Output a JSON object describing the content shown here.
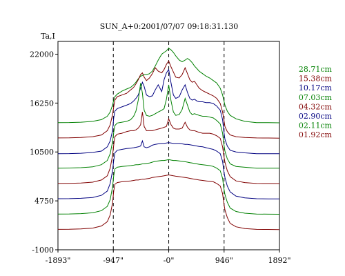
{
  "chart_data": {
    "type": "line",
    "title": "SUN_A+0:2001/07/07 09:18:31.130",
    "ylabel": "Ta,I",
    "xlabel": "",
    "grid": false,
    "legend_position": "right",
    "xlim": [
      -1893,
      1892
    ],
    "ylim": [
      -1000,
      23500
    ],
    "x_ticks": [
      {
        "value": -1893,
        "label": "-1893\""
      },
      {
        "value": -947,
        "label": "-947\""
      },
      {
        "value": 0,
        "label": "-0\""
      },
      {
        "value": 946,
        "label": "946\""
      },
      {
        "value": 1892,
        "label": "1892\""
      }
    ],
    "y_ticks": [
      {
        "value": 22000,
        "label": "22000"
      },
      {
        "value": 16250,
        "label": "16250"
      },
      {
        "value": 10500,
        "label": "10500"
      },
      {
        "value": 4750,
        "label": "4750"
      },
      {
        "value": -1000,
        "label": "-1000"
      }
    ],
    "vlines": [
      -947,
      0,
      946
    ],
    "x": [
      -1893,
      -1700,
      -1500,
      -1300,
      -1150,
      -1050,
      -1000,
      -960,
      -940,
      -920,
      -880,
      -800,
      -720,
      -650,
      -600,
      -560,
      -520,
      -480,
      -450,
      -420,
      -380,
      -330,
      -280,
      -230,
      -180,
      -120,
      -80,
      -40,
      0,
      40,
      80,
      120,
      180,
      230,
      280,
      320,
      360,
      400,
      440,
      480,
      520,
      580,
      640,
      700,
      760,
      820,
      880,
      920,
      940,
      960,
      1000,
      1050,
      1150,
      1300,
      1500,
      1700,
      1892
    ],
    "series": [
      {
        "name": "28.71cm",
        "color": "#008000",
        "values": [
          13950,
          13960,
          14000,
          14100,
          14300,
          14700,
          15200,
          16000,
          16600,
          17000,
          17300,
          17650,
          17900,
          18100,
          18400,
          18700,
          19100,
          19400,
          19500,
          19600,
          19600,
          19700,
          20000,
          20600,
          21300,
          22000,
          22200,
          22400,
          22700,
          22500,
          22200,
          21800,
          21300,
          21100,
          21300,
          21500,
          21300,
          21000,
          20600,
          20300,
          20000,
          19700,
          19400,
          19200,
          18900,
          18600,
          18000,
          17200,
          16600,
          16000,
          15300,
          14800,
          14400,
          14100,
          13950,
          13940,
          13930
        ]
      },
      {
        "name": "15.38cm",
        "color": "#800000",
        "values": [
          12150,
          12160,
          12200,
          12300,
          12500,
          13000,
          13700,
          14900,
          15800,
          16600,
          17000,
          17200,
          17400,
          17800,
          18100,
          18500,
          19000,
          19600,
          19800,
          19300,
          18900,
          19200,
          19700,
          20400,
          20000,
          19800,
          20200,
          20800,
          21200,
          20500,
          19900,
          19300,
          19200,
          19600,
          20400,
          19700,
          19000,
          18700,
          18800,
          18400,
          18000,
          17700,
          17500,
          17300,
          17100,
          16800,
          16200,
          15200,
          14400,
          13500,
          12900,
          12500,
          12300,
          12200,
          12150,
          12140,
          12130
        ]
      },
      {
        "name": "10.17cm",
        "color": "#000080",
        "values": [
          10300,
          10310,
          10350,
          10450,
          10600,
          11100,
          11800,
          13000,
          14500,
          15300,
          15600,
          15800,
          16000,
          16200,
          16500,
          16800,
          17200,
          18000,
          18700,
          18200,
          17200,
          17000,
          17100,
          17800,
          18400,
          17600,
          19000,
          19800,
          20200,
          18600,
          17200,
          16800,
          17000,
          17800,
          18400,
          17500,
          16800,
          16600,
          16700,
          16500,
          16400,
          16400,
          16300,
          16300,
          16200,
          15900,
          15400,
          14300,
          13000,
          12000,
          11200,
          10700,
          10500,
          10400,
          10300,
          10300,
          10300
        ]
      },
      {
        "name": "07.03cm",
        "color": "#008000",
        "values": [
          8600,
          8610,
          8650,
          8750,
          9000,
          9500,
          10300,
          11700,
          12800,
          13600,
          13900,
          14000,
          14100,
          14300,
          14700,
          15300,
          16600,
          18600,
          17400,
          15400,
          14800,
          14700,
          14800,
          15000,
          15200,
          15400,
          15600,
          16700,
          18400,
          16500,
          15200,
          14800,
          14900,
          15500,
          16800,
          16000,
          15200,
          14900,
          15000,
          14900,
          14800,
          14700,
          14700,
          14600,
          14500,
          14200,
          13800,
          12700,
          11500,
          10600,
          9700,
          9100,
          8800,
          8700,
          8600,
          8600,
          8600
        ]
      },
      {
        "name": "04.32cm",
        "color": "#800000",
        "values": [
          6800,
          6810,
          6850,
          6950,
          7200,
          7700,
          8600,
          10100,
          11300,
          12300,
          12600,
          12700,
          12900,
          13000,
          13000,
          13100,
          13300,
          13700,
          15200,
          13500,
          13000,
          13000,
          13000,
          13100,
          13200,
          13300,
          13400,
          13500,
          14400,
          13700,
          13300,
          13200,
          13200,
          13300,
          14000,
          13400,
          13100,
          13000,
          13000,
          12900,
          12800,
          12700,
          12700,
          12700,
          12600,
          12400,
          12100,
          11100,
          10100,
          9300,
          8300,
          7600,
          7100,
          6900,
          6800,
          6790,
          6780
        ]
      },
      {
        "name": "02.90cm",
        "color": "#000080",
        "values": [
          5000,
          5010,
          5050,
          5150,
          5400,
          5900,
          6800,
          8300,
          9500,
          10400,
          10700,
          10800,
          10900,
          10950,
          11000,
          11050,
          11100,
          11200,
          11800,
          11100,
          11000,
          11100,
          11300,
          11400,
          11450,
          11500,
          11500,
          11550,
          11600,
          11550,
          11500,
          11500,
          11500,
          11450,
          11400,
          11400,
          11350,
          11300,
          11250,
          11200,
          11150,
          11100,
          11000,
          10900,
          10800,
          10600,
          10300,
          9400,
          8300,
          7500,
          6500,
          5800,
          5300,
          5100,
          5000,
          4990,
          4980
        ]
      },
      {
        "name": "02.11cm",
        "color": "#008000",
        "values": [
          3200,
          3210,
          3250,
          3350,
          3600,
          4100,
          4900,
          6400,
          7700,
          8500,
          8700,
          8800,
          8850,
          8900,
          8950,
          9000,
          9000,
          9050,
          9100,
          9100,
          9150,
          9200,
          9300,
          9400,
          9450,
          9500,
          9500,
          9550,
          9600,
          9550,
          9500,
          9500,
          9450,
          9400,
          9350,
          9300,
          9250,
          9200,
          9150,
          9100,
          9050,
          9000,
          8950,
          8900,
          8800,
          8600,
          8300,
          7400,
          6300,
          5500,
          4600,
          3900,
          3500,
          3300,
          3200,
          3190,
          3180
        ]
      },
      {
        "name": "01.92cm",
        "color": "#800000",
        "values": [
          1400,
          1410,
          1450,
          1550,
          1800,
          2300,
          3100,
          4500,
          5900,
          6700,
          6900,
          7000,
          7050,
          7100,
          7150,
          7200,
          7200,
          7250,
          7300,
          7300,
          7350,
          7400,
          7500,
          7550,
          7600,
          7650,
          7700,
          7750,
          7800,
          7750,
          7700,
          7650,
          7600,
          7550,
          7500,
          7450,
          7400,
          7350,
          7300,
          7250,
          7200,
          7150,
          7100,
          7050,
          7000,
          6800,
          6500,
          5600,
          4500,
          3700,
          2800,
          2100,
          1700,
          1500,
          1400,
          1390,
          1380
        ]
      }
    ]
  }
}
